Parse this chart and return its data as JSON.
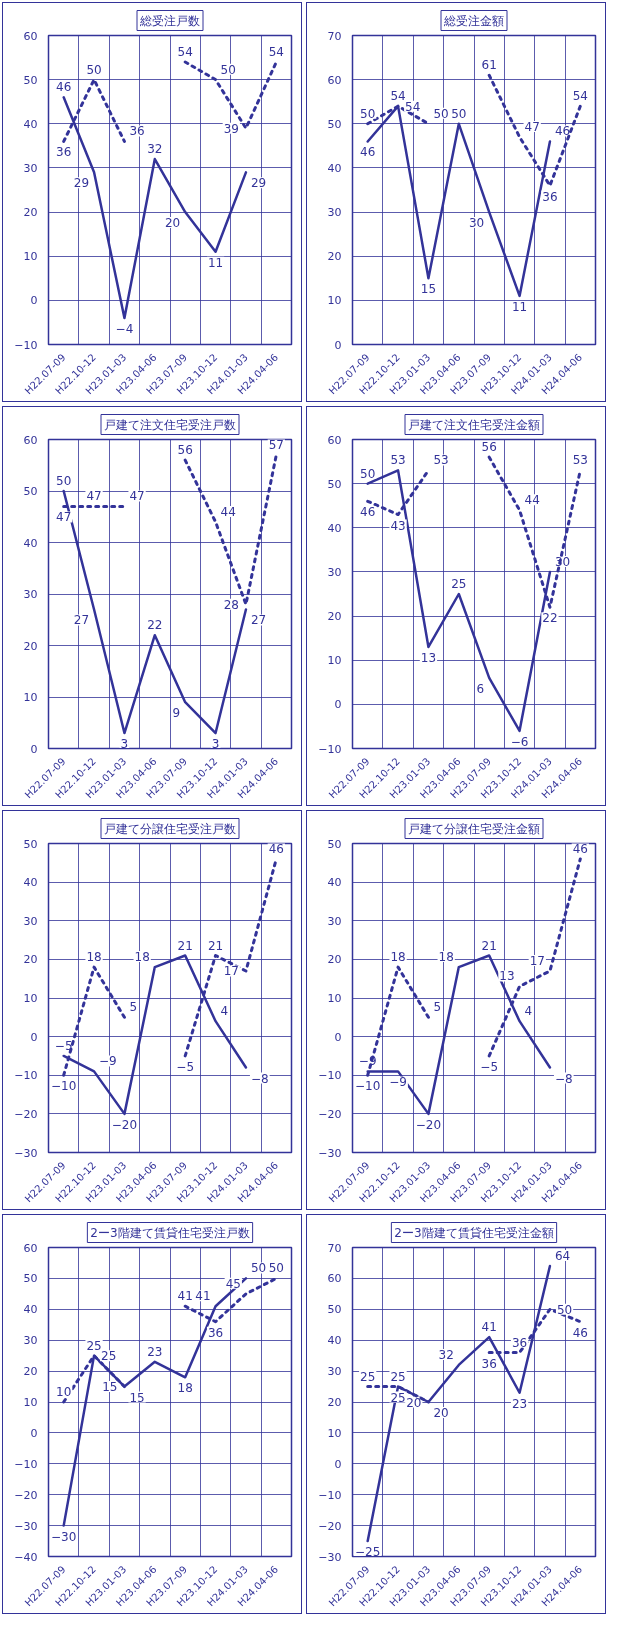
{
  "chart_data": [
    {
      "type": "line",
      "title": "総受注戸数",
      "categories": [
        "H22.07-09",
        "H22.10-12",
        "H23.01-03",
        "H23.04-06",
        "H23.07-09",
        "H23.10-12",
        "H24.01-03",
        "H24.04-06"
      ],
      "ylim": [
        -10,
        60
      ],
      "yticks": [
        -10,
        0,
        10,
        20,
        30,
        40,
        50,
        60
      ],
      "grid": true,
      "data_labels": true,
      "marker": "none",
      "series": [
        {
          "color": "#333399",
          "line_style": "solid",
          "values": [
            46,
            29,
            -4,
            32,
            20,
            11,
            29,
            null
          ]
        },
        {
          "color": "#333399",
          "line_style": "dotted",
          "values": [
            36,
            50,
            36,
            null,
            54,
            50,
            39,
            54
          ]
        }
      ]
    },
    {
      "type": "line",
      "title": "総受注金額",
      "categories": [
        "H22.07-09",
        "H22.10-12",
        "H23.01-03",
        "H23.04-06",
        "H23.07-09",
        "H23.10-12",
        "H24.01-03",
        "H24.04-06"
      ],
      "ylim": [
        0,
        70
      ],
      "yticks": [
        0,
        10,
        20,
        30,
        40,
        50,
        60,
        70
      ],
      "grid": true,
      "data_labels": true,
      "marker": "none",
      "series": [
        {
          "color": "#333399",
          "line_style": "solid",
          "values": [
            46,
            54,
            15,
            50,
            30,
            11,
            46,
            null
          ]
        },
        {
          "color": "#333399",
          "line_style": "dotted",
          "values": [
            50,
            54,
            50,
            null,
            61,
            47,
            36,
            54
          ]
        }
      ]
    },
    {
      "type": "line",
      "title": "戸建て注文住宅受注戸数",
      "categories": [
        "H22.07-09",
        "H22.10-12",
        "H23.01-03",
        "H23.04-06",
        "H23.07-09",
        "H23.10-12",
        "H24.01-03",
        "H24.04-06"
      ],
      "ylim": [
        0,
        60
      ],
      "yticks": [
        0,
        10,
        20,
        30,
        40,
        50,
        60
      ],
      "grid": true,
      "data_labels": true,
      "marker": "none",
      "series": [
        {
          "color": "#333399",
          "line_style": "solid",
          "values": [
            50,
            27,
            3,
            22,
            9,
            3,
            27,
            null
          ]
        },
        {
          "color": "#333399",
          "line_style": "dotted",
          "values": [
            47,
            47,
            47,
            null,
            56,
            44,
            28,
            57
          ]
        }
      ]
    },
    {
      "type": "line",
      "title": "戸建て注文住宅受注金額",
      "categories": [
        "H22.07-09",
        "H22.10-12",
        "H23.01-03",
        "H23.04-06",
        "H23.07-09",
        "H23.10-12",
        "H24.01-03",
        "H24.04-06"
      ],
      "ylim": [
        -10,
        60
      ],
      "yticks": [
        -10,
        0,
        10,
        20,
        30,
        40,
        50,
        60
      ],
      "grid": true,
      "data_labels": true,
      "marker": "none",
      "series": [
        {
          "color": "#333399",
          "line_style": "solid",
          "values": [
            50,
            53,
            13,
            25,
            6,
            -6,
            30,
            null
          ]
        },
        {
          "color": "#333399",
          "line_style": "dotted",
          "values": [
            46,
            43,
            53,
            null,
            56,
            44,
            22,
            53
          ]
        }
      ]
    },
    {
      "type": "line",
      "title": "戸建て分譲住宅受注戸数",
      "categories": [
        "H22.07-09",
        "H22.10-12",
        "H23.01-03",
        "H23.04-06",
        "H23.07-09",
        "H23.10-12",
        "H24.01-03",
        "H24.04-06"
      ],
      "ylim": [
        -30,
        50
      ],
      "yticks": [
        -30,
        -20,
        -10,
        0,
        10,
        20,
        30,
        40,
        50
      ],
      "grid": true,
      "data_labels": true,
      "marker": "none",
      "series": [
        {
          "color": "#333399",
          "line_style": "solid",
          "values": [
            -5,
            -9,
            -20,
            18,
            21,
            4,
            -8,
            null
          ]
        },
        {
          "color": "#333399",
          "line_style": "dotted",
          "values": [
            -10,
            18,
            5,
            null,
            -5,
            21,
            17,
            46
          ]
        }
      ]
    },
    {
      "type": "line",
      "title": "戸建て分譲住宅受注金額",
      "categories": [
        "H22.07-09",
        "H22.10-12",
        "H23.01-03",
        "H23.04-06",
        "H23.07-09",
        "H23.10-12",
        "H24.01-03",
        "H24.04-06"
      ],
      "ylim": [
        -30,
        50
      ],
      "yticks": [
        -30,
        -20,
        -10,
        0,
        10,
        20,
        30,
        40,
        50
      ],
      "grid": true,
      "data_labels": true,
      "marker": "none",
      "series": [
        {
          "color": "#333399",
          "line_style": "solid",
          "values": [
            -9,
            -9,
            -20,
            18,
            21,
            4,
            -8,
            null
          ]
        },
        {
          "color": "#333399",
          "line_style": "dotted",
          "values": [
            -10,
            18,
            5,
            null,
            -5,
            13,
            17,
            46
          ]
        }
      ]
    },
    {
      "type": "line",
      "title": "2ー3階建て賃貸住宅受注戸数",
      "categories": [
        "H22.07-09",
        "H22.10-12",
        "H23.01-03",
        "H23.04-06",
        "H23.07-09",
        "H23.10-12",
        "H24.01-03",
        "H24.04-06"
      ],
      "ylim": [
        -40,
        60
      ],
      "yticks": [
        -40,
        -30,
        -20,
        -10,
        0,
        10,
        20,
        30,
        40,
        50,
        60
      ],
      "grid": true,
      "data_labels": true,
      "marker": "none",
      "series": [
        {
          "color": "#333399",
          "line_style": "solid",
          "values": [
            -30,
            25,
            15,
            23,
            18,
            41,
            50,
            null
          ]
        },
        {
          "color": "#333399",
          "line_style": "dotted",
          "values": [
            10,
            25,
            15,
            null,
            41,
            36,
            45,
            50
          ]
        }
      ]
    },
    {
      "type": "line",
      "title": "2ー3階建て賃貸住宅受注金額",
      "categories": [
        "H22.07-09",
        "H22.10-12",
        "H23.01-03",
        "H23.04-06",
        "H23.07-09",
        "H23.10-12",
        "H24.01-03",
        "H24.04-06"
      ],
      "ylim": [
        -30,
        70
      ],
      "yticks": [
        -30,
        -20,
        -10,
        0,
        10,
        20,
        30,
        40,
        50,
        60,
        70
      ],
      "grid": true,
      "data_labels": true,
      "marker": "none",
      "series": [
        {
          "color": "#333399",
          "line_style": "solid",
          "values": [
            -25,
            25,
            20,
            32,
            41,
            23,
            64,
            null
          ]
        },
        {
          "color": "#333399",
          "line_style": "dotted",
          "values": [
            25,
            25,
            20,
            null,
            36,
            36,
            50,
            46
          ]
        }
      ]
    }
  ]
}
